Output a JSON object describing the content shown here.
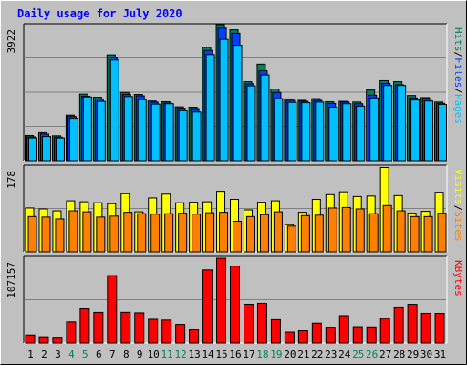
{
  "title": "Daily usage for July 2020",
  "colors": {
    "background": "#c0c0c0",
    "title": "#0000ff",
    "hits": "#00805c",
    "files": "#0040ff",
    "pages": "#00c0ff",
    "sites": "#ff8000",
    "visits": "#ffff00",
    "kbytes": "#ff0000",
    "grid": "#808080",
    "day_weekday": "#000000",
    "day_weekend": "#00805c"
  },
  "chart_data": [
    {
      "type": "bar",
      "panel": "hits-files-pages",
      "ymax_label": "3922",
      "ylim": [
        0,
        3922
      ],
      "legend": [
        "Pages",
        "Files",
        "Hits"
      ],
      "legend_sep": "/",
      "categories": [
        "1",
        "2",
        "3",
        "4",
        "5",
        "6",
        "7",
        "8",
        "9",
        "10",
        "11",
        "12",
        "13",
        "14",
        "15",
        "16",
        "17",
        "18",
        "19",
        "20",
        "21",
        "22",
        "23",
        "24",
        "25",
        "26",
        "27",
        "28",
        "29",
        "30",
        "31"
      ],
      "weekend_days": [
        "4",
        "5",
        "11",
        "12",
        "18",
        "19",
        "25",
        "26"
      ],
      "series": [
        {
          "name": "Hits",
          "values": [
            730,
            810,
            720,
            1320,
            1930,
            1840,
            3070,
            1980,
            1920,
            1730,
            1710,
            1560,
            1550,
            3290,
            3950,
            3800,
            2290,
            2800,
            2080,
            1790,
            1750,
            1800,
            1710,
            1720,
            1700,
            2050,
            2320,
            2290,
            1890,
            1830,
            1700
          ]
        },
        {
          "name": "Files",
          "values": [
            690,
            770,
            680,
            1280,
            1870,
            1790,
            2990,
            1920,
            1880,
            1700,
            1670,
            1520,
            1510,
            3200,
            3850,
            3700,
            2230,
            2610,
            1980,
            1750,
            1720,
            1750,
            1660,
            1700,
            1650,
            1900,
            2240,
            2200,
            1820,
            1800,
            1660
          ]
        },
        {
          "name": "Pages",
          "values": [
            660,
            700,
            660,
            1230,
            1850,
            1720,
            2920,
            1860,
            1770,
            1640,
            1650,
            1450,
            1410,
            3080,
            3520,
            3350,
            2170,
            2490,
            1800,
            1690,
            1680,
            1700,
            1550,
            1650,
            1580,
            1820,
            2180,
            2180,
            1760,
            1730,
            1630
          ]
        }
      ]
    },
    {
      "type": "bar",
      "panel": "sites-visits",
      "ymax_label": "178",
      "ylim": [
        0,
        178
      ],
      "legend": [
        "Sites",
        "Visits"
      ],
      "legend_sep": "/",
      "series": [
        {
          "name": "Visits",
          "values": [
            92,
            90,
            86,
            107,
            105,
            103,
            101,
            122,
            84,
            113,
            121,
            103,
            104,
            105,
            127,
            110,
            88,
            104,
            107,
            57,
            83,
            110,
            120,
            126,
            116,
            117,
            177,
            118,
            81,
            85,
            125
          ]
        },
        {
          "name": "Sites",
          "values": [
            74,
            73,
            69,
            86,
            84,
            73,
            75,
            83,
            80,
            79,
            80,
            81,
            79,
            82,
            83,
            64,
            74,
            78,
            84,
            54,
            76,
            77,
            92,
            93,
            90,
            80,
            97,
            86,
            74,
            74,
            81
          ]
        }
      ]
    },
    {
      "type": "bar",
      "panel": "kbytes",
      "ymax_label": "107157",
      "ylim": [
        0,
        107157
      ],
      "legend": [
        "KBytes"
      ],
      "series": [
        {
          "name": "KBytes",
          "values": [
            10100,
            7900,
            7300,
            26700,
            43300,
            38700,
            85200,
            38800,
            38100,
            30000,
            29000,
            23500,
            16700,
            92400,
            107100,
            97200,
            49000,
            50200,
            29500,
            13800,
            15500,
            25100,
            20000,
            34600,
            20700,
            20400,
            31000,
            45600,
            48900,
            37500,
            37400
          ]
        }
      ]
    }
  ]
}
